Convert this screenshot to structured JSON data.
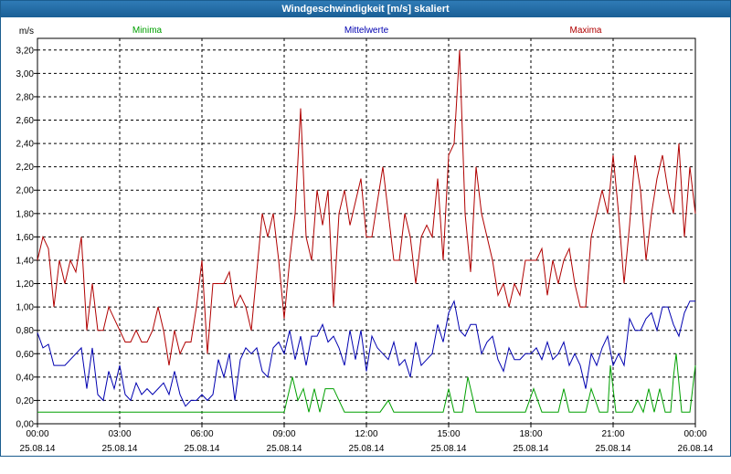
{
  "window": {
    "title": "Windgeschwindigkeit [m/s] skaliert"
  },
  "colors": {
    "minima": "#00a000",
    "mittelwerte": "#0000b0",
    "maxima": "#b00000",
    "titlebar": "#1f67a0"
  },
  "chart_data": {
    "type": "line",
    "title": "Windgeschwindigkeit [m/s] skaliert",
    "ylabel": "m/s",
    "xlabel": "",
    "ylim": [
      0,
      3.3
    ],
    "y_ticks": [
      "0,00",
      "0,20",
      "0,40",
      "0,60",
      "0,80",
      "1,00",
      "1,20",
      "1,40",
      "1,60",
      "1,80",
      "2,00",
      "2,20",
      "2,40",
      "2,60",
      "2,80",
      "3,00",
      "3,20"
    ],
    "x_ticks": [
      {
        "time": "00:00",
        "date": "25.08.14"
      },
      {
        "time": "03:00",
        "date": "25.08.14"
      },
      {
        "time": "06:00",
        "date": "25.08.14"
      },
      {
        "time": "09:00",
        "date": "25.08.14"
      },
      {
        "time": "12:00",
        "date": "25.08.14"
      },
      {
        "time": "15:00",
        "date": "25.08.14"
      },
      {
        "time": "18:00",
        "date": "25.08.14"
      },
      {
        "time": "21:00",
        "date": "25.08.14"
      },
      {
        "time": "00:00",
        "date": "26.08.14"
      }
    ],
    "xlim_hours": [
      0,
      24
    ],
    "grid": true,
    "legend_placement": "top",
    "series": [
      {
        "name": "Minima",
        "color": "#00a000",
        "points": [
          [
            0,
            0.1
          ],
          [
            9.0,
            0.1
          ],
          [
            9.3,
            0.4
          ],
          [
            9.5,
            0.2
          ],
          [
            9.7,
            0.3
          ],
          [
            9.9,
            0.1
          ],
          [
            10.1,
            0.3
          ],
          [
            10.3,
            0.1
          ],
          [
            10.5,
            0.3
          ],
          [
            10.8,
            0.3
          ],
          [
            11.0,
            0.2
          ],
          [
            11.2,
            0.1
          ],
          [
            12.5,
            0.1
          ],
          [
            12.8,
            0.2
          ],
          [
            13.0,
            0.1
          ],
          [
            14.8,
            0.1
          ],
          [
            15.0,
            0.3
          ],
          [
            15.2,
            0.1
          ],
          [
            15.5,
            0.1
          ],
          [
            15.7,
            0.4
          ],
          [
            16.0,
            0.1
          ],
          [
            17.8,
            0.1
          ],
          [
            18.1,
            0.3
          ],
          [
            18.4,
            0.1
          ],
          [
            19.0,
            0.1
          ],
          [
            19.2,
            0.3
          ],
          [
            19.4,
            0.1
          ],
          [
            20.0,
            0.1
          ],
          [
            20.2,
            0.3
          ],
          [
            20.5,
            0.1
          ],
          [
            20.8,
            0.1
          ],
          [
            20.9,
            0.5
          ],
          [
            21.1,
            0.1
          ],
          [
            21.7,
            0.1
          ],
          [
            21.9,
            0.2
          ],
          [
            22.1,
            0.1
          ],
          [
            22.3,
            0.3
          ],
          [
            22.5,
            0.1
          ],
          [
            22.7,
            0.3
          ],
          [
            22.9,
            0.1
          ],
          [
            23.1,
            0.1
          ],
          [
            23.2,
            0.4
          ],
          [
            23.3,
            0.6
          ],
          [
            23.5,
            0.1
          ],
          [
            23.8,
            0.1
          ],
          [
            24.0,
            0.5
          ]
        ]
      },
      {
        "name": "Mittelwerte",
        "color": "#0000b0",
        "points": [
          [
            0,
            0.78
          ],
          [
            0.2,
            0.65
          ],
          [
            0.4,
            0.68
          ],
          [
            0.6,
            0.5
          ],
          [
            0.8,
            0.5
          ],
          [
            1.0,
            0.5
          ],
          [
            1.2,
            0.55
          ],
          [
            1.4,
            0.6
          ],
          [
            1.6,
            0.65
          ],
          [
            1.8,
            0.3
          ],
          [
            2.0,
            0.65
          ],
          [
            2.2,
            0.25
          ],
          [
            2.4,
            0.2
          ],
          [
            2.6,
            0.45
          ],
          [
            2.8,
            0.3
          ],
          [
            3.0,
            0.5
          ],
          [
            3.2,
            0.25
          ],
          [
            3.4,
            0.2
          ],
          [
            3.6,
            0.35
          ],
          [
            3.8,
            0.25
          ],
          [
            4.0,
            0.3
          ],
          [
            4.2,
            0.25
          ],
          [
            4.4,
            0.3
          ],
          [
            4.6,
            0.35
          ],
          [
            4.8,
            0.25
          ],
          [
            5.0,
            0.45
          ],
          [
            5.2,
            0.25
          ],
          [
            5.4,
            0.15
          ],
          [
            5.6,
            0.2
          ],
          [
            5.8,
            0.2
          ],
          [
            6.0,
            0.25
          ],
          [
            6.2,
            0.2
          ],
          [
            6.4,
            0.25
          ],
          [
            6.6,
            0.55
          ],
          [
            6.8,
            0.4
          ],
          [
            7.0,
            0.6
          ],
          [
            7.2,
            0.2
          ],
          [
            7.4,
            0.55
          ],
          [
            7.6,
            0.65
          ],
          [
            7.8,
            0.6
          ],
          [
            8.0,
            0.65
          ],
          [
            8.2,
            0.45
          ],
          [
            8.4,
            0.4
          ],
          [
            8.6,
            0.65
          ],
          [
            8.8,
            0.7
          ],
          [
            9.0,
            0.6
          ],
          [
            9.2,
            0.8
          ],
          [
            9.4,
            0.55
          ],
          [
            9.6,
            0.75
          ],
          [
            9.8,
            0.5
          ],
          [
            10.0,
            0.75
          ],
          [
            10.2,
            0.75
          ],
          [
            10.4,
            0.85
          ],
          [
            10.6,
            0.7
          ],
          [
            10.8,
            0.75
          ],
          [
            11.0,
            0.65
          ],
          [
            11.2,
            0.5
          ],
          [
            11.4,
            0.8
          ],
          [
            11.6,
            0.55
          ],
          [
            11.8,
            0.8
          ],
          [
            12.0,
            0.45
          ],
          [
            12.2,
            0.75
          ],
          [
            12.4,
            0.65
          ],
          [
            12.6,
            0.6
          ],
          [
            12.8,
            0.55
          ],
          [
            13.0,
            0.7
          ],
          [
            13.2,
            0.5
          ],
          [
            13.4,
            0.55
          ],
          [
            13.6,
            0.4
          ],
          [
            13.8,
            0.7
          ],
          [
            14.0,
            0.5
          ],
          [
            14.2,
            0.55
          ],
          [
            14.4,
            0.6
          ],
          [
            14.6,
            0.85
          ],
          [
            14.8,
            0.7
          ],
          [
            15.0,
            0.95
          ],
          [
            15.2,
            1.05
          ],
          [
            15.4,
            0.8
          ],
          [
            15.6,
            0.75
          ],
          [
            15.8,
            0.85
          ],
          [
            16.0,
            0.85
          ],
          [
            16.2,
            0.6
          ],
          [
            16.4,
            0.7
          ],
          [
            16.6,
            0.75
          ],
          [
            16.8,
            0.55
          ],
          [
            17.0,
            0.45
          ],
          [
            17.2,
            0.65
          ],
          [
            17.4,
            0.55
          ],
          [
            17.6,
            0.55
          ],
          [
            17.8,
            0.6
          ],
          [
            18.0,
            0.6
          ],
          [
            18.2,
            0.65
          ],
          [
            18.4,
            0.55
          ],
          [
            18.6,
            0.7
          ],
          [
            18.8,
            0.55
          ],
          [
            19.0,
            0.6
          ],
          [
            19.2,
            0.7
          ],
          [
            19.4,
            0.5
          ],
          [
            19.6,
            0.6
          ],
          [
            19.8,
            0.5
          ],
          [
            20.0,
            0.3
          ],
          [
            20.2,
            0.6
          ],
          [
            20.4,
            0.5
          ],
          [
            20.6,
            0.65
          ],
          [
            20.8,
            0.75
          ],
          [
            21.0,
            0.5
          ],
          [
            21.2,
            0.6
          ],
          [
            21.4,
            0.5
          ],
          [
            21.6,
            0.9
          ],
          [
            21.8,
            0.8
          ],
          [
            22.0,
            0.8
          ],
          [
            22.2,
            0.9
          ],
          [
            22.4,
            0.95
          ],
          [
            22.6,
            0.8
          ],
          [
            22.8,
            1.0
          ],
          [
            23.0,
            1.0
          ],
          [
            23.2,
            0.85
          ],
          [
            23.4,
            0.75
          ],
          [
            23.6,
            0.95
          ],
          [
            23.8,
            1.05
          ],
          [
            24.0,
            1.05
          ]
        ]
      },
      {
        "name": "Maxima",
        "color": "#b00000",
        "points": [
          [
            0,
            1.4
          ],
          [
            0.2,
            1.6
          ],
          [
            0.4,
            1.5
          ],
          [
            0.6,
            1.0
          ],
          [
            0.8,
            1.4
          ],
          [
            1.0,
            1.2
          ],
          [
            1.2,
            1.4
          ],
          [
            1.4,
            1.3
          ],
          [
            1.6,
            1.6
          ],
          [
            1.8,
            0.8
          ],
          [
            2.0,
            1.2
          ],
          [
            2.2,
            0.8
          ],
          [
            2.4,
            0.8
          ],
          [
            2.6,
            1.0
          ],
          [
            2.8,
            0.9
          ],
          [
            3.0,
            0.8
          ],
          [
            3.2,
            0.7
          ],
          [
            3.4,
            0.7
          ],
          [
            3.6,
            0.8
          ],
          [
            3.8,
            0.7
          ],
          [
            4.0,
            0.7
          ],
          [
            4.2,
            0.8
          ],
          [
            4.4,
            1.0
          ],
          [
            4.6,
            0.8
          ],
          [
            4.8,
            0.5
          ],
          [
            5.0,
            0.8
          ],
          [
            5.2,
            0.6
          ],
          [
            5.4,
            0.7
          ],
          [
            5.6,
            0.7
          ],
          [
            5.8,
            1.0
          ],
          [
            6.0,
            1.4
          ],
          [
            6.2,
            0.6
          ],
          [
            6.4,
            1.2
          ],
          [
            6.6,
            1.2
          ],
          [
            6.8,
            1.2
          ],
          [
            7.0,
            1.3
          ],
          [
            7.2,
            1.0
          ],
          [
            7.4,
            1.1
          ],
          [
            7.6,
            1.0
          ],
          [
            7.8,
            0.8
          ],
          [
            8.0,
            1.3
          ],
          [
            8.2,
            1.8
          ],
          [
            8.4,
            1.6
          ],
          [
            8.6,
            1.8
          ],
          [
            8.8,
            1.4
          ],
          [
            9.0,
            0.9
          ],
          [
            9.2,
            1.4
          ],
          [
            9.4,
            1.8
          ],
          [
            9.6,
            2.7
          ],
          [
            9.8,
            1.6
          ],
          [
            10.0,
            1.4
          ],
          [
            10.2,
            2.0
          ],
          [
            10.4,
            1.7
          ],
          [
            10.6,
            2.0
          ],
          [
            10.8,
            1.0
          ],
          [
            11.0,
            1.8
          ],
          [
            11.2,
            2.0
          ],
          [
            11.4,
            1.7
          ],
          [
            11.6,
            1.9
          ],
          [
            11.8,
            2.1
          ],
          [
            12.0,
            1.6
          ],
          [
            12.2,
            1.6
          ],
          [
            12.4,
            1.9
          ],
          [
            12.6,
            2.2
          ],
          [
            12.8,
            1.8
          ],
          [
            13.0,
            1.4
          ],
          [
            13.2,
            1.4
          ],
          [
            13.4,
            1.8
          ],
          [
            13.6,
            1.6
          ],
          [
            13.8,
            1.2
          ],
          [
            14.0,
            1.6
          ],
          [
            14.2,
            1.7
          ],
          [
            14.4,
            1.6
          ],
          [
            14.6,
            2.1
          ],
          [
            14.8,
            1.4
          ],
          [
            15.0,
            2.3
          ],
          [
            15.2,
            2.4
          ],
          [
            15.4,
            3.2
          ],
          [
            15.6,
            1.8
          ],
          [
            15.8,
            1.3
          ],
          [
            16.0,
            2.2
          ],
          [
            16.2,
            1.8
          ],
          [
            16.4,
            1.6
          ],
          [
            16.6,
            1.4
          ],
          [
            16.8,
            1.1
          ],
          [
            17.0,
            1.2
          ],
          [
            17.2,
            1.0
          ],
          [
            17.4,
            1.2
          ],
          [
            17.6,
            1.1
          ],
          [
            17.8,
            1.4
          ],
          [
            18.0,
            1.4
          ],
          [
            18.2,
            1.4
          ],
          [
            18.4,
            1.5
          ],
          [
            18.6,
            1.1
          ],
          [
            18.8,
            1.4
          ],
          [
            19.0,
            1.2
          ],
          [
            19.2,
            1.4
          ],
          [
            19.4,
            1.5
          ],
          [
            19.6,
            1.2
          ],
          [
            19.8,
            1.0
          ],
          [
            20.0,
            1.0
          ],
          [
            20.2,
            1.6
          ],
          [
            20.4,
            1.8
          ],
          [
            20.6,
            2.0
          ],
          [
            20.8,
            1.8
          ],
          [
            21.0,
            2.3
          ],
          [
            21.2,
            1.8
          ],
          [
            21.4,
            1.2
          ],
          [
            21.6,
            1.7
          ],
          [
            21.8,
            2.3
          ],
          [
            22.0,
            2.0
          ],
          [
            22.2,
            1.4
          ],
          [
            22.4,
            1.8
          ],
          [
            22.6,
            2.1
          ],
          [
            22.8,
            2.3
          ],
          [
            23.0,
            2.0
          ],
          [
            23.2,
            1.8
          ],
          [
            23.4,
            2.4
          ],
          [
            23.6,
            1.6
          ],
          [
            23.8,
            2.2
          ],
          [
            24.0,
            1.8
          ]
        ]
      }
    ]
  }
}
